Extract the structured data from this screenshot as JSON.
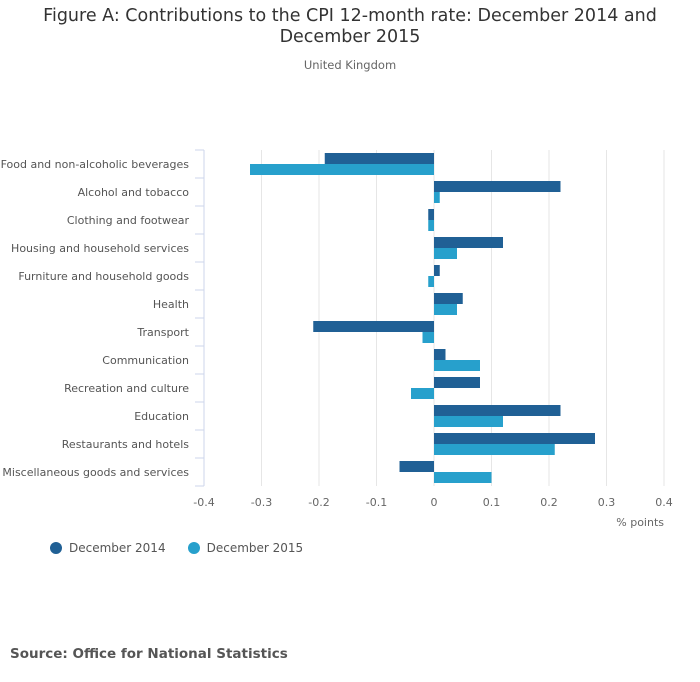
{
  "colors": {
    "series_2014": "#206095",
    "series_2015": "#27a0cc",
    "grid": "#e6e6e6",
    "axis": "#ccd6eb"
  },
  "chart_data": {
    "type": "bar",
    "orientation": "horizontal",
    "title": "Figure A: Contributions to the CPI 12-month rate: December 2014 and December 2015",
    "subtitle": "United Kingdom",
    "xlabel": "% points",
    "ylabel": "",
    "xlim": [
      -0.4,
      0.4
    ],
    "xticks": [
      "-0.4",
      "-0.3",
      "-0.2",
      "-0.1",
      "0",
      "0.1",
      "0.2",
      "0.3",
      "0.4"
    ],
    "grid": true,
    "legend_position": "bottom-left",
    "categories": [
      "Food and non-alcoholic beverages",
      "Alcohol and tobacco",
      "Clothing and footwear",
      "Housing and household services",
      "Furniture and household goods",
      "Health",
      "Transport",
      "Communication",
      "Recreation and culture",
      "Education",
      "Restaurants and hotels",
      "Miscellaneous goods and services"
    ],
    "series": [
      {
        "name": "December 2014",
        "values": [
          -0.19,
          0.22,
          -0.01,
          0.12,
          0.01,
          0.05,
          -0.21,
          0.02,
          0.08,
          0.22,
          0.28,
          -0.06
        ]
      },
      {
        "name": "December 2015",
        "values": [
          -0.32,
          0.01,
          -0.01,
          0.04,
          -0.01,
          0.04,
          -0.02,
          0.08,
          -0.04,
          0.12,
          0.21,
          0.1
        ]
      }
    ]
  },
  "source": "Source: Office for National Statistics"
}
